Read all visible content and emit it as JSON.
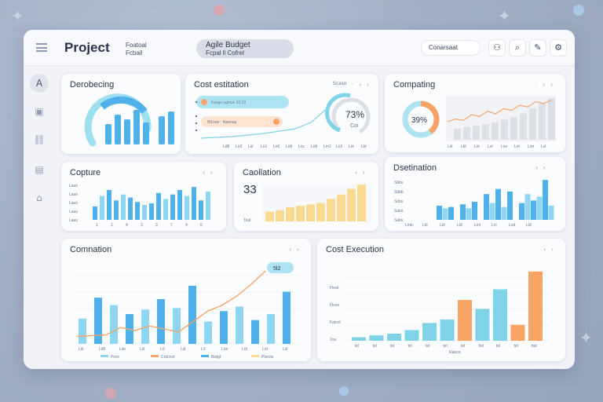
{
  "app": {
    "title": "Project",
    "subtitle_line1": "Foatoal",
    "subtitle_line2": "Fcbail",
    "budget_line1": "Agile Budget",
    "budget_line2": "Fcpal ll Cofrel",
    "top_pill_label": "Conarsaat",
    "top_icons": [
      "person-icon",
      "search-icon",
      "edit-icon",
      "settings-icon"
    ],
    "top_glyphs": [
      "⚇",
      "⌕",
      "✎",
      "⚙"
    ]
  },
  "sidebar": {
    "items": [
      {
        "name": "home",
        "glyph": "A"
      },
      {
        "name": "briefcase",
        "glyph": "▣"
      },
      {
        "name": "link",
        "glyph": "⛓"
      },
      {
        "name": "message",
        "glyph": "▤"
      },
      {
        "name": "house",
        "glyph": "⌂"
      }
    ]
  },
  "colors": {
    "cyan": "#7fd3e6",
    "blue": "#4fb0ea",
    "light_blue": "#8fd6f3",
    "orange": "#f7a466",
    "yellow": "#fbd990",
    "gray": "#dcdfe5"
  },
  "cards": {
    "dev": {
      "title": "Derobecing",
      "dots": "· · ·"
    },
    "cost_est": {
      "title": "Cost estitation",
      "legend": "Scaso",
      "dots": "· ‹ ›",
      "pill1_text": "Faegc ogmuc 33:13",
      "pill2_text": "8t1ooe · Naonaa",
      "gauge_value": "73%",
      "gauge_label": "Coi",
      "x_labels": [
        "Ld8",
        "Lo3",
        "Lsl",
        "Lo1",
        "Ln6",
        "Lo6",
        "Lnc",
        "Lo6",
        "Lm1",
        "Lo2",
        "Lol",
        "Lbl"
      ]
    },
    "computing": {
      "title": "Compating",
      "dots": "· ‹ ›",
      "donut_value": "39%",
      "x_labels": [
        "Lsl",
        "Lbl",
        "Lol",
        "Lol",
        "Lnn",
        "Lnl",
        "Lon",
        "Lsl"
      ],
      "line": [
        42,
        48,
        45,
        58,
        54,
        66,
        60,
        72,
        68,
        80,
        76,
        88,
        84,
        92
      ],
      "bars": [
        18,
        20,
        22,
        25,
        28,
        32,
        36,
        42,
        50,
        58,
        66
      ]
    },
    "capture": {
      "title": "Copture",
      "dots": "‹ ›",
      "y_labels": [
        "Laas",
        "Laas",
        "Laos",
        "Laas",
        "Laas"
      ],
      "x_labels": [
        "1",
        "1",
        "4",
        "3",
        "3",
        "7",
        "4",
        "5"
      ],
      "bars": [
        18,
        32,
        40,
        26,
        34,
        30,
        24,
        20,
        22,
        36,
        28,
        34,
        40,
        32,
        44,
        26,
        38
      ]
    },
    "collation": {
      "title": "Caollation",
      "value": "33",
      "dots": "‹ ›",
      "y_label": "Toal",
      "bars": [
        14,
        16,
        20,
        22,
        24,
        26,
        32,
        38,
        46,
        52
      ]
    },
    "destination": {
      "title": "Dsetination",
      "dots": "‹ ›",
      "y_labels": [
        "Sbbs",
        "Sbbb",
        "Sobs",
        "Sabs",
        "Sabs"
      ],
      "x_labels": [
        "Lmb",
        "Lbl",
        "Lbl",
        "Lbl",
        "Lml",
        "Lnl",
        "Lod",
        "Lbl"
      ],
      "bars": [
        22,
        18,
        20,
        16,
        24,
        18,
        28,
        14,
        40,
        26,
        48,
        20,
        44,
        12,
        26,
        40,
        30,
        36,
        62,
        22
      ]
    },
    "combination": {
      "title": "Comnation",
      "badge": "5l2",
      "dots": "‹ ›",
      "x_labels": [
        "Lsl",
        "Ld5",
        "Lsb",
        "Lsl",
        "Lrl",
        "Lsl",
        "Lrl",
        "Lnn",
        "Lrb",
        "Lnt",
        "Lsl"
      ],
      "bars": [
        34,
        62,
        52,
        40,
        46,
        60,
        48,
        78,
        30,
        44,
        50,
        32,
        40,
        70
      ],
      "line": [
        10,
        11,
        12,
        22,
        18,
        24,
        20,
        16,
        30,
        44,
        52,
        64,
        80,
        98
      ],
      "legend": [
        "Prorr",
        "Crdcnot",
        "Bwlgt",
        "Plorcte"
      ]
    },
    "cost_exec": {
      "title": "Cost Execution",
      "dots": "‹ ›",
      "y_labels": [
        "Fleat",
        "Flcos",
        "Fatcol",
        "1ns"
      ],
      "x_labels": [
        "lel",
        "tel",
        "tel",
        "tel",
        "tel",
        "tel",
        "tel",
        "hel",
        "tel",
        "tel",
        "bal"
      ],
      "x_axis_title": "Rasca",
      "values": [
        4,
        6,
        8,
        12,
        20,
        24,
        46,
        36,
        58,
        18,
        78
      ],
      "colors": [
        "cyan",
        "cyan",
        "cyan",
        "cyan",
        "cyan",
        "cyan",
        "orange",
        "cyan",
        "cyan",
        "orange",
        "orange"
      ]
    }
  }
}
